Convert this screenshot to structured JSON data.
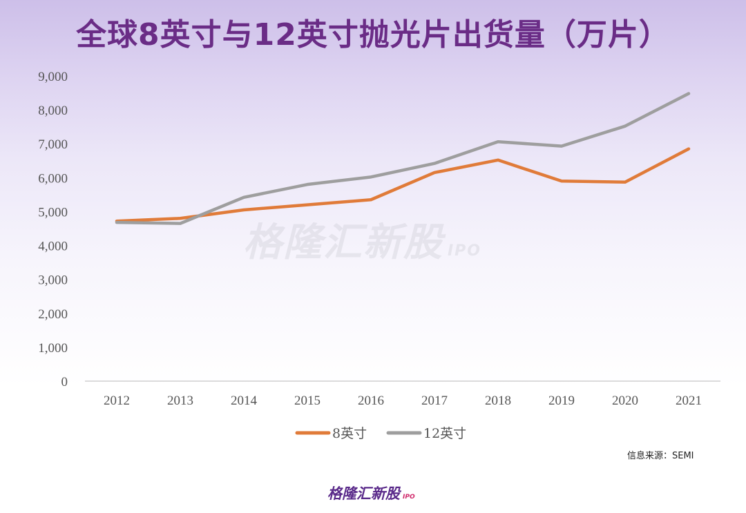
{
  "title": "全球8英寸与12英寸抛光片出货量（万片）",
  "source_note": "信息来源：SEMI",
  "watermark": {
    "text": "格隆汇新股",
    "sub": "IPO"
  },
  "brand": {
    "text": "格隆汇新股",
    "sub": "IPO"
  },
  "colors": {
    "title": "#6a2c86",
    "series_8": "#e07b39",
    "series_12": "#9e9e9e"
  },
  "chart_data": {
    "type": "line",
    "title": "全球8英寸与12英寸抛光片出货量（万片）",
    "x": [
      "2012",
      "2013",
      "2014",
      "2015",
      "2016",
      "2017",
      "2018",
      "2019",
      "2020",
      "2021"
    ],
    "y_ticks": [
      "0",
      "1,000",
      "2,000",
      "3,000",
      "4,000",
      "5,000",
      "6,000",
      "7,000",
      "8,000",
      "9,000"
    ],
    "ylim": [
      0,
      9000
    ],
    "grid": false,
    "legend_position": "bottom",
    "series": [
      {
        "name": "8英寸",
        "color": "#e07b39",
        "values": [
          4720,
          4800,
          5050,
          5200,
          5350,
          6150,
          6520,
          5900,
          5870,
          6850
        ]
      },
      {
        "name": "12英寸",
        "color": "#9e9e9e",
        "values": [
          4680,
          4650,
          5420,
          5800,
          6020,
          6420,
          7060,
          6930,
          7520,
          8480
        ]
      }
    ]
  }
}
